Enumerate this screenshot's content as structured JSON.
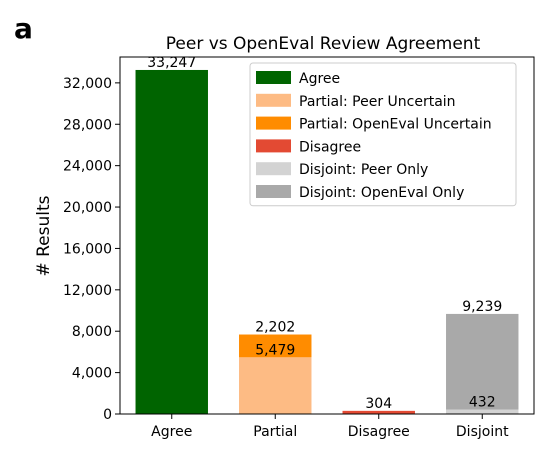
{
  "panel_label": "a",
  "chart_data": {
    "type": "bar",
    "stacked": true,
    "title": "Peer vs OpenEval Review Agreement",
    "xlabel": "",
    "ylabel": "# Results",
    "ylim": [
      0,
      34500
    ],
    "yticks": [
      0,
      4000,
      8000,
      12000,
      16000,
      20000,
      24000,
      28000,
      32000
    ],
    "ytick_labels": [
      "0",
      "4,000",
      "8,000",
      "12,000",
      "16,000",
      "20,000",
      "24,000",
      "28,000",
      "32,000"
    ],
    "categories": [
      "Agree",
      "Partial",
      "Disagree",
      "Disjoint"
    ],
    "grid": false,
    "legend_position": "top-right",
    "series": [
      {
        "name": "Agree",
        "color": "#006400",
        "values": [
          33247,
          0,
          0,
          0
        ],
        "labels": [
          "33,247",
          "",
          "",
          ""
        ]
      },
      {
        "name": "Partial: Peer Uncertain",
        "color": "#FDBB84",
        "values": [
          0,
          5479,
          0,
          0
        ],
        "labels": [
          "",
          "5,479",
          "",
          ""
        ]
      },
      {
        "name": "Partial: OpenEval Uncertain",
        "color": "#FF8C00",
        "values": [
          0,
          2202,
          0,
          0
        ],
        "labels": [
          "",
          "2,202",
          "",
          ""
        ]
      },
      {
        "name": "Disagree",
        "color": "#E34A33",
        "values": [
          0,
          0,
          304,
          0
        ],
        "labels": [
          "",
          "",
          "304",
          ""
        ]
      },
      {
        "name": "Disjoint: Peer Only",
        "color": "#D3D3D3",
        "values": [
          0,
          0,
          0,
          432
        ],
        "labels": [
          "",
          "",
          "",
          "432"
        ]
      },
      {
        "name": "Disjoint: OpenEval Only",
        "color": "#A9A9A9",
        "values": [
          0,
          0,
          0,
          9239
        ],
        "labels": [
          "",
          "",
          "",
          "9,239"
        ]
      }
    ]
  }
}
